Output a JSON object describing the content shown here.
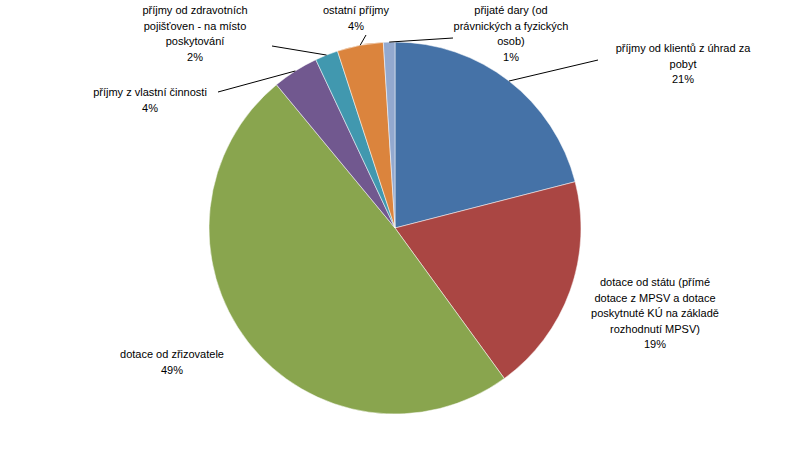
{
  "chart_data": {
    "type": "pie",
    "categories": [
      "příjmy od klientů z úhrad za pobyt",
      "dotace od státu (přímé dotace z MPSV a dotace poskytnuté KÚ na základě rozhodnutí MPSV)",
      "dotace od zřizovatele",
      "příjmy z vlastní činnosti",
      "příjmy od zdravotních pojišťoven - na místo poskytování",
      "ostatní příjmy",
      "přijaté dary (od právnických a fyzických osob)"
    ],
    "values": [
      21,
      19,
      49,
      4,
      2,
      4,
      1
    ],
    "value_labels": [
      "21%",
      "19%",
      "49%",
      "4%",
      "2%",
      "4%",
      "1%"
    ],
    "colors": [
      "#4572a7",
      "#aa4643",
      "#89a54e",
      "#71588f",
      "#4198af",
      "#db843d",
      "#93a9cf"
    ],
    "data_labels": true
  }
}
